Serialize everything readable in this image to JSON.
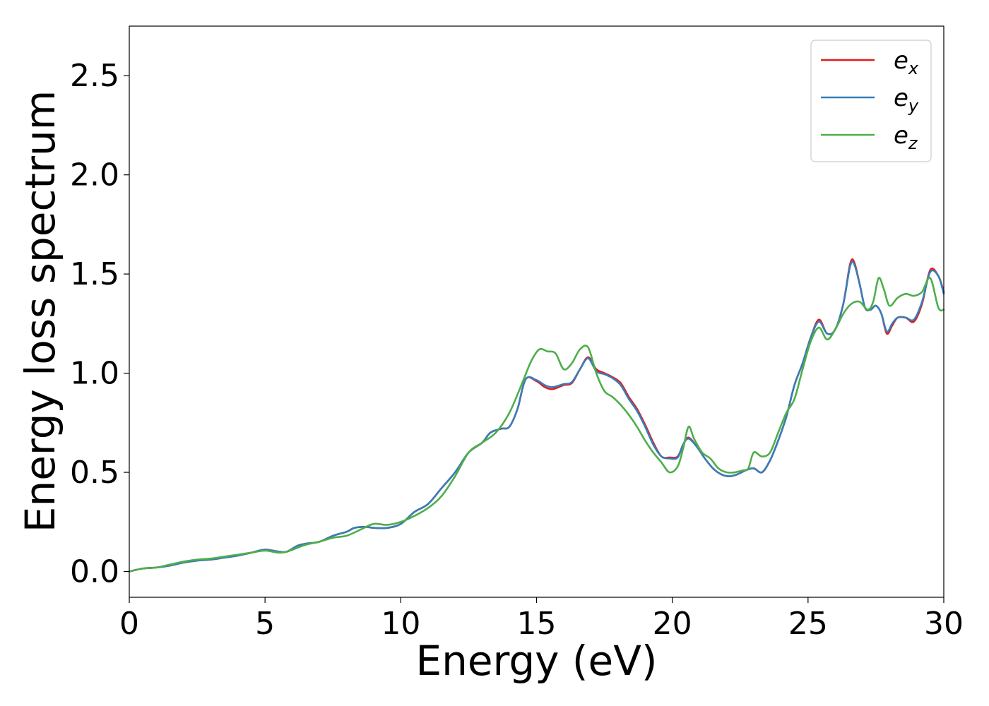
{
  "chart_data": {
    "type": "line",
    "xlabel": "Energy (eV)",
    "ylabel": "Energy loss spectrum",
    "xlim": [
      0,
      30
    ],
    "ylim": [
      -0.13,
      2.75
    ],
    "xticks": [
      0,
      5,
      10,
      15,
      20,
      25,
      30
    ],
    "xtick_labels": [
      "0",
      "5",
      "10",
      "15",
      "20",
      "25",
      "30"
    ],
    "yticks": [
      0.0,
      0.5,
      1.0,
      1.5,
      2.0,
      2.5
    ],
    "ytick_labels": [
      "0.0",
      "0.5",
      "1.0",
      "1.5",
      "2.0",
      "2.5"
    ],
    "grid": false,
    "legend_position": "top-right",
    "series": [
      {
        "name": "e_x",
        "legend_base": "e",
        "legend_sub": "x",
        "color": "#e41a1c",
        "x": [
          0,
          0.5,
          1,
          1.5,
          2,
          2.5,
          3,
          3.5,
          4,
          4.5,
          5,
          5.5,
          5.8,
          6.2,
          6.5,
          7,
          7.5,
          8,
          8.3,
          8.7,
          9,
          9.5,
          10,
          10.5,
          11,
          11.5,
          12,
          12.5,
          13,
          13.3,
          13.7,
          14,
          14.3,
          14.6,
          15,
          15.3,
          15.6,
          16,
          16.3,
          16.6,
          16.9,
          17.2,
          17.5,
          17.8,
          18.1,
          18.4,
          18.7,
          19,
          19.3,
          19.6,
          19.9,
          20.2,
          20.4,
          20.6,
          20.9,
          21.2,
          21.5,
          21.8,
          22.1,
          22.4,
          22.7,
          23,
          23.3,
          23.6,
          23.9,
          24.2,
          24.5,
          24.8,
          25.1,
          25.4,
          25.7,
          26,
          26.3,
          26.55,
          26.7,
          26.9,
          27.1,
          27.3,
          27.5,
          27.7,
          27.9,
          28.1,
          28.3,
          28.6,
          28.9,
          29.2,
          29.5,
          29.8,
          30
        ],
        "values": [
          0.0,
          0.015,
          0.02,
          0.03,
          0.045,
          0.055,
          0.06,
          0.07,
          0.08,
          0.095,
          0.11,
          0.1,
          0.1,
          0.13,
          0.14,
          0.15,
          0.18,
          0.2,
          0.22,
          0.225,
          0.22,
          0.22,
          0.24,
          0.3,
          0.34,
          0.42,
          0.5,
          0.6,
          0.65,
          0.7,
          0.72,
          0.73,
          0.82,
          0.97,
          0.96,
          0.93,
          0.92,
          0.94,
          0.95,
          1.02,
          1.08,
          1.02,
          1.0,
          0.98,
          0.95,
          0.88,
          0.82,
          0.74,
          0.65,
          0.58,
          0.575,
          0.58,
          0.64,
          0.675,
          0.63,
          0.57,
          0.52,
          0.49,
          0.48,
          0.49,
          0.51,
          0.52,
          0.5,
          0.56,
          0.66,
          0.78,
          0.94,
          1.05,
          1.18,
          1.27,
          1.2,
          1.22,
          1.35,
          1.55,
          1.56,
          1.45,
          1.33,
          1.32,
          1.34,
          1.3,
          1.2,
          1.24,
          1.28,
          1.28,
          1.26,
          1.35,
          1.52,
          1.49,
          1.41
        ]
      },
      {
        "name": "e_y",
        "legend_base": "e",
        "legend_sub": "y",
        "color": "#377eb8",
        "x": [
          0,
          0.5,
          1,
          1.5,
          2,
          2.5,
          3,
          3.5,
          4,
          4.5,
          5,
          5.5,
          5.8,
          6.2,
          6.5,
          7,
          7.5,
          8,
          8.3,
          8.7,
          9,
          9.5,
          10,
          10.5,
          11,
          11.5,
          12,
          12.5,
          13,
          13.3,
          13.7,
          14,
          14.3,
          14.6,
          15,
          15.3,
          15.6,
          16,
          16.3,
          16.6,
          16.9,
          17.2,
          17.5,
          17.8,
          18.1,
          18.4,
          18.7,
          19,
          19.3,
          19.6,
          19.9,
          20.2,
          20.4,
          20.6,
          20.9,
          21.2,
          21.5,
          21.8,
          22.1,
          22.4,
          22.7,
          23,
          23.3,
          23.6,
          23.9,
          24.2,
          24.5,
          24.8,
          25.1,
          25.4,
          25.7,
          26,
          26.3,
          26.55,
          26.7,
          26.9,
          27.1,
          27.3,
          27.5,
          27.7,
          27.9,
          28.1,
          28.3,
          28.6,
          28.9,
          29.2,
          29.5,
          29.8,
          30
        ],
        "values": [
          0.0,
          0.015,
          0.02,
          0.03,
          0.045,
          0.055,
          0.06,
          0.07,
          0.08,
          0.095,
          0.11,
          0.1,
          0.1,
          0.13,
          0.14,
          0.15,
          0.18,
          0.2,
          0.22,
          0.225,
          0.22,
          0.22,
          0.24,
          0.3,
          0.34,
          0.42,
          0.5,
          0.6,
          0.65,
          0.7,
          0.72,
          0.73,
          0.82,
          0.97,
          0.965,
          0.94,
          0.93,
          0.945,
          0.955,
          1.02,
          1.075,
          1.01,
          0.995,
          0.975,
          0.94,
          0.87,
          0.81,
          0.73,
          0.64,
          0.58,
          0.57,
          0.575,
          0.64,
          0.67,
          0.63,
          0.57,
          0.52,
          0.49,
          0.48,
          0.49,
          0.51,
          0.52,
          0.5,
          0.56,
          0.66,
          0.78,
          0.94,
          1.05,
          1.18,
          1.26,
          1.2,
          1.22,
          1.35,
          1.54,
          1.55,
          1.45,
          1.33,
          1.32,
          1.34,
          1.3,
          1.21,
          1.25,
          1.28,
          1.28,
          1.27,
          1.36,
          1.51,
          1.49,
          1.4
        ]
      },
      {
        "name": "e_z",
        "legend_base": "e",
        "legend_sub": "z",
        "color": "#4daf4a",
        "x": [
          0,
          0.5,
          1,
          1.5,
          2,
          2.5,
          3,
          3.5,
          4,
          4.5,
          5,
          5.5,
          5.8,
          6.2,
          6.5,
          7,
          7.5,
          8,
          8.5,
          9,
          9.5,
          10,
          10.5,
          11,
          11.5,
          12,
          12.5,
          13,
          13.5,
          14,
          14.5,
          14.8,
          15.1,
          15.4,
          15.7,
          16,
          16.3,
          16.6,
          16.9,
          17.2,
          17.5,
          17.8,
          18.1,
          18.4,
          18.7,
          19,
          19.3,
          19.6,
          19.9,
          20.2,
          20.4,
          20.6,
          20.8,
          21.1,
          21.4,
          21.7,
          22,
          22.3,
          22.6,
          22.8,
          23.0,
          23.3,
          23.6,
          23.9,
          24.2,
          24.5,
          24.8,
          25.1,
          25.4,
          25.7,
          26,
          26.3,
          26.6,
          26.9,
          27.2,
          27.4,
          27.6,
          27.8,
          28.0,
          28.3,
          28.6,
          28.9,
          29.2,
          29.5,
          29.8,
          30
        ],
        "values": [
          0.0,
          0.015,
          0.02,
          0.035,
          0.05,
          0.06,
          0.065,
          0.075,
          0.085,
          0.095,
          0.105,
          0.095,
          0.1,
          0.12,
          0.135,
          0.15,
          0.17,
          0.18,
          0.21,
          0.24,
          0.235,
          0.25,
          0.28,
          0.32,
          0.38,
          0.48,
          0.6,
          0.65,
          0.7,
          0.8,
          0.96,
          1.06,
          1.12,
          1.11,
          1.1,
          1.02,
          1.05,
          1.12,
          1.13,
          1.0,
          0.91,
          0.88,
          0.84,
          0.79,
          0.73,
          0.66,
          0.6,
          0.55,
          0.5,
          0.53,
          0.62,
          0.73,
          0.67,
          0.6,
          0.57,
          0.52,
          0.5,
          0.5,
          0.51,
          0.52,
          0.6,
          0.58,
          0.6,
          0.7,
          0.8,
          0.87,
          1.02,
          1.16,
          1.23,
          1.17,
          1.22,
          1.3,
          1.35,
          1.36,
          1.32,
          1.36,
          1.48,
          1.42,
          1.34,
          1.38,
          1.4,
          1.39,
          1.41,
          1.48,
          1.33,
          1.32
        ]
      }
    ]
  }
}
